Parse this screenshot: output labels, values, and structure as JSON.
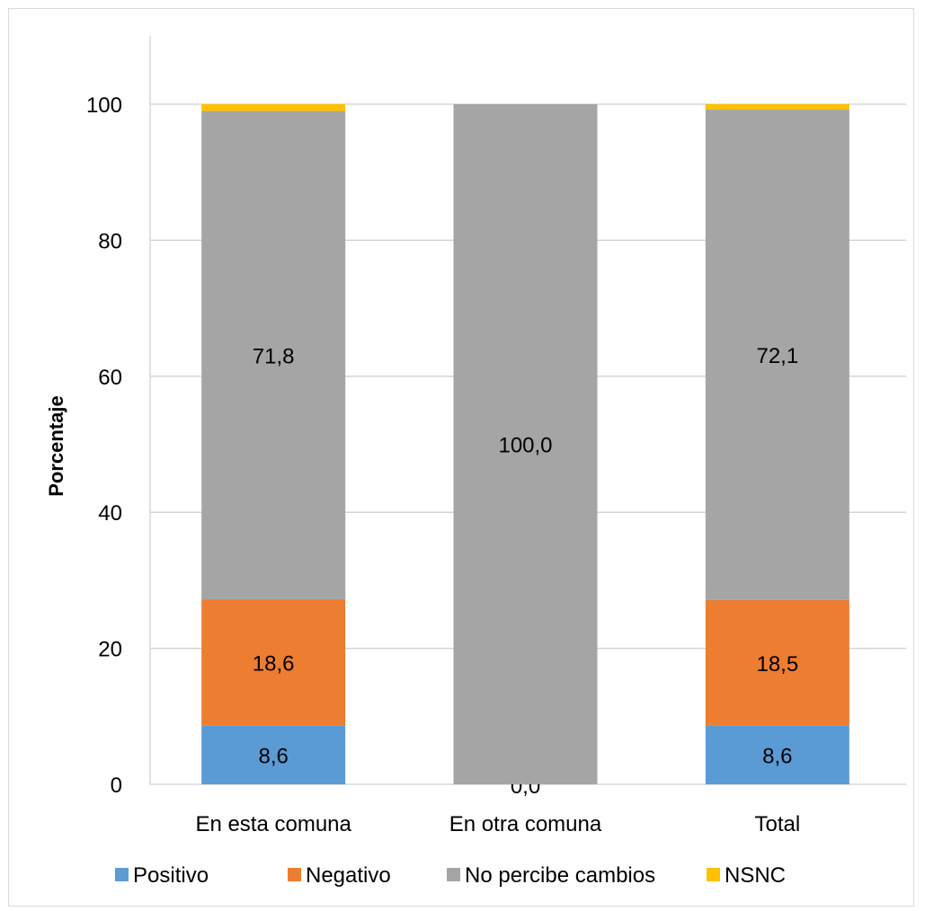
{
  "chart_data": {
    "type": "bar",
    "stacked": true,
    "categories": [
      "En esta comuna",
      "En otra comuna",
      "Total"
    ],
    "series": [
      {
        "name": "Positivo",
        "color": "#5B9BD5",
        "values": [
          8.6,
          0.0,
          8.6
        ],
        "labels": [
          "8,6",
          "0,0",
          "8,6"
        ]
      },
      {
        "name": "Negativo",
        "color": "#ED7D31",
        "values": [
          18.6,
          0.0,
          18.5
        ],
        "labels": [
          "18,6",
          "0,0",
          "18,5"
        ]
      },
      {
        "name": "No percibe cambios",
        "color": "#A5A5A5",
        "values": [
          71.8,
          100.0,
          72.1
        ],
        "labels": [
          "71,8",
          "100,0",
          "72,1"
        ]
      },
      {
        "name": "NSNC",
        "color": "#FFC000",
        "values": [
          1.0,
          0.0,
          0.8
        ],
        "labels": [
          "",
          "",
          ""
        ]
      }
    ],
    "ylabel": "Porcentaje",
    "xlabel": "",
    "title": "",
    "ylim": [
      0,
      100
    ],
    "yticks": [
      "0",
      "20",
      "40",
      "60",
      "80",
      "100"
    ],
    "grid": true,
    "legend_position": "bottom"
  }
}
